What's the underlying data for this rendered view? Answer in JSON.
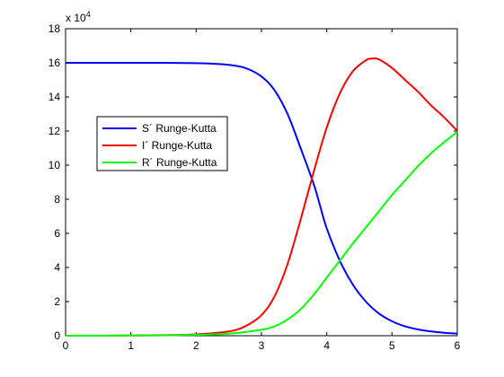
{
  "chart_data": {
    "type": "line",
    "title": "",
    "xlabel": "",
    "ylabel": "",
    "xlim": [
      0,
      6
    ],
    "ylim": [
      0,
      18
    ],
    "y_multiplier_base": "x 10",
    "y_multiplier_exponent": "4",
    "xticks": [
      "0",
      "1",
      "2",
      "3",
      "4",
      "5",
      "6"
    ],
    "yticks": [
      "0",
      "2",
      "4",
      "6",
      "8",
      "10",
      "12",
      "14",
      "16",
      "18"
    ],
    "grid": false,
    "legend_position": "upper-left",
    "series": [
      {
        "name": "S´ Runge-Kutta",
        "color": "#0000ff",
        "x": [
          0,
          0.5,
          1,
          1.5,
          2,
          2.25,
          2.5,
          2.75,
          3,
          3.2,
          3.4,
          3.6,
          3.8,
          3.9,
          4,
          4.2,
          4.4,
          4.6,
          4.8,
          5,
          5.2,
          5.4,
          5.6,
          5.8,
          6
        ],
        "y": [
          16,
          16,
          16,
          16,
          15.98,
          15.95,
          15.88,
          15.7,
          15.2,
          14.4,
          13.0,
          11.0,
          8.9,
          7.6,
          6.3,
          4.4,
          3.0,
          2.0,
          1.3,
          0.85,
          0.55,
          0.37,
          0.25,
          0.17,
          0.12
        ]
      },
      {
        "name": "I´ Runge-Kutta",
        "color": "#ff0000",
        "x": [
          0,
          0.5,
          1,
          1.5,
          2,
          2.5,
          2.75,
          3,
          3.2,
          3.4,
          3.6,
          3.8,
          4,
          4.2,
          4.4,
          4.6,
          4.7,
          4.8,
          5,
          5.2,
          5.4,
          5.6,
          5.8,
          6
        ],
        "y": [
          0,
          0,
          0.01,
          0.03,
          0.08,
          0.25,
          0.55,
          1.2,
          2.3,
          4.2,
          6.8,
          9.6,
          12.2,
          14.2,
          15.5,
          16.15,
          16.25,
          16.2,
          15.7,
          15.0,
          14.3,
          13.5,
          12.8,
          12.0
        ]
      },
      {
        "name": "R´ Runge-Kutta",
        "color": "#00ff00",
        "x": [
          0,
          0.5,
          1,
          1.5,
          2,
          2.5,
          3,
          3.2,
          3.4,
          3.6,
          3.8,
          4,
          4.2,
          4.4,
          4.6,
          4.8,
          5,
          5.2,
          5.4,
          5.6,
          5.8,
          6
        ],
        "y": [
          0,
          0,
          0.01,
          0.02,
          0.05,
          0.12,
          0.35,
          0.55,
          0.95,
          1.55,
          2.4,
          3.4,
          4.4,
          5.4,
          6.35,
          7.3,
          8.25,
          9.1,
          9.95,
          10.7,
          11.35,
          11.95
        ]
      }
    ]
  }
}
